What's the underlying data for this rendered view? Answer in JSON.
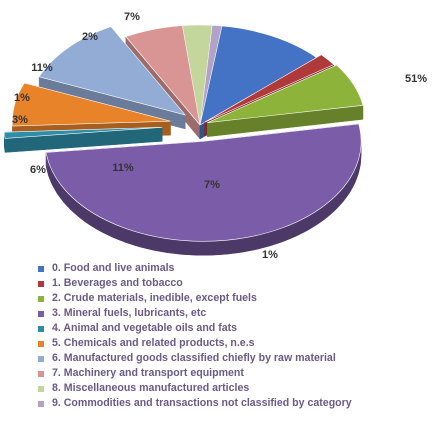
{
  "chart_data": {
    "type": "pie",
    "title": "",
    "legend_position": "bottom",
    "slices": [
      {
        "name": "0. Food and live animals",
        "value": 11,
        "label": "11%",
        "color": "#4472c4"
      },
      {
        "name": "1.  Beverages and tobacco",
        "value": 2,
        "label": "2%",
        "color": "#b03a3a"
      },
      {
        "name": "2. Crude materials, inedible, except fuels",
        "value": 7,
        "label": "7%",
        "color": "#8db33a"
      },
      {
        "name": "3. Mineral fuels, lubricants, etc",
        "value": 51,
        "label": "51%",
        "color": "#7a5ca8"
      },
      {
        "name": "4. Animal and vegetable oils and fats",
        "value": 1,
        "label": "1%",
        "color": "#2e8da8"
      },
      {
        "name": "5. Chemicals and related products, n.e.s",
        "value": 7,
        "label": "7%",
        "color": "#e8832a"
      },
      {
        "name": "6. Manufactured goods classified chiefly by raw material",
        "value": 11,
        "label": "11%",
        "color": "#93acd6"
      },
      {
        "name": "7. Machinery and transport equipment",
        "value": 6,
        "label": "6%",
        "color": "#d99594"
      },
      {
        "name": "8. Miscellaneous manufactured articles",
        "value": 3,
        "label": "3%",
        "color": "#c3d69b"
      },
      {
        "name": "9. Commodities and transactions not classified by category",
        "value": 1,
        "label": "1%",
        "color": "#b3a2c7"
      }
    ]
  }
}
